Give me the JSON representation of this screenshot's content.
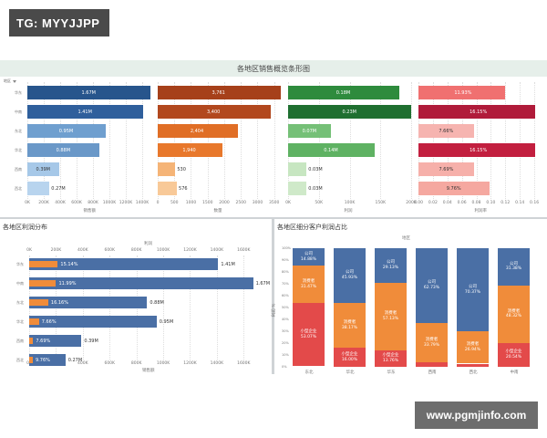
{
  "tag": {
    "text": "TG: MYYJJPP"
  },
  "watermark": {
    "text": "www.pgmjinfo.com"
  },
  "overview": {
    "title": "各地区销售概览条形图",
    "region_header": "地区",
    "regions": [
      "华东",
      "中南",
      "东北",
      "华北",
      "西南",
      "西北"
    ],
    "columns": [
      {
        "axis_title": "销售额",
        "color": "#27558c",
        "ticks": [
          "0K",
          "200K",
          "400K",
          "600K",
          "800K",
          "1000K",
          "1200K",
          "1400K"
        ],
        "max": 1500000,
        "values": [
          1670000,
          1410000,
          950000,
          880000,
          390000,
          270000
        ],
        "labels": [
          "1.67M",
          "1.41M",
          "0.95M",
          "0.88M",
          "0.39M",
          "0.27M"
        ],
        "bar_colors": [
          "#27558c",
          "#2f5f9c",
          "#6f9fcf",
          "#6a98c8",
          "#a6c8e8",
          "#b8d4ee"
        ]
      },
      {
        "axis_title": "数量",
        "color": "#c0541f",
        "ticks": [
          "0",
          "500",
          "1000",
          "1500",
          "2000",
          "2500",
          "3000",
          "3500"
        ],
        "max": 3700,
        "values": [
          3761,
          3400,
          2404,
          1940,
          530,
          576
        ],
        "labels": [
          "3,761",
          "3,400",
          "2,404",
          "1,940",
          "530",
          "576"
        ],
        "bar_colors": [
          "#a6401a",
          "#b2481e",
          "#e06e26",
          "#e8782c",
          "#f5b477",
          "#f8c998"
        ]
      },
      {
        "axis_title": "利润",
        "color": "#2d8a3a",
        "ticks": [
          "0K",
          "50K",
          "100K",
          "150K",
          "200K"
        ],
        "max": 200000,
        "values": [
          180000,
          230000,
          70000,
          140000,
          30000,
          30000
        ],
        "labels": [
          "0.18M",
          "0.23M",
          "0.07M",
          "0.14M",
          "0.03M",
          "0.03M"
        ],
        "bar_colors": [
          "#2e8b3d",
          "#1f6f30",
          "#75c077",
          "#5fb263",
          "#c7e6c1",
          "#cfe9c9"
        ]
      },
      {
        "axis_title": "利润率",
        "color": "#c8303a",
        "ticks": [
          "0.00",
          "0.02",
          "0.04",
          "0.06",
          "0.08",
          "0.10",
          "0.12",
          "0.14",
          "0.16"
        ],
        "max": 0.17,
        "values": [
          0.1193,
          0.1615,
          0.0766,
          0.1615,
          0.0769,
          0.0976
        ],
        "labels": [
          "11.93%",
          "16.15%",
          "7.66%",
          "16.15%",
          "7.69%",
          "9.76%"
        ],
        "bar_colors": [
          "#f07070",
          "#b01b3a",
          "#f6b4b0",
          "#c21f3f",
          "#f6b0aa",
          "#f5a8a0"
        ]
      }
    ]
  },
  "profit_dist": {
    "title": "各地区利润分布",
    "axis_top_title": "利润",
    "axis_bottom_title": "销售额",
    "ticks": [
      "0K",
      "200K",
      "400K",
      "600K",
      "800K",
      "1000K",
      "1200K",
      "1400K",
      "1600K"
    ],
    "max_sales": 1700000,
    "regions": [
      "华东",
      "中南",
      "东北",
      "华北",
      "西南",
      "西北"
    ],
    "sales": [
      1410000,
      1670000,
      880000,
      950000,
      390000,
      270000
    ],
    "sales_labels": [
      "1.41M",
      "1.67M",
      "0.88M",
      "0.95M",
      "0.39M",
      "0.27M"
    ],
    "profit_rates": [
      "15.14%",
      "11.99%",
      "16.16%",
      "7.66%",
      "7.69%",
      "9.76%"
    ],
    "profit_ratio": [
      0.1514,
      0.1199,
      0.1616,
      0.0766,
      0.0769,
      0.0976
    ],
    "colors": {
      "sales": "#4a6fa5",
      "profit": "#f08c3a"
    }
  },
  "segment_ratio": {
    "title": "各地区细分客户利润占比",
    "axis_top_title": "地区",
    "y_axis_title": "利润 %",
    "y_ticks": [
      "100%",
      "90%",
      "80%",
      "70%",
      "60%",
      "50%",
      "40%",
      "30%",
      "20%",
      "10%",
      "0%"
    ],
    "regions": [
      "东北",
      "华北",
      "华东",
      "西南",
      "西北",
      "中南"
    ],
    "colors": {
      "company": "#4a6fa5",
      "consumer": "#f08c3a",
      "small_biz": "#e34a4a"
    },
    "stacks": [
      {
        "company": 0.1488,
        "consumer": 0.3147,
        "small_biz": 0.5307,
        "labels": {
          "company": "公司\n14.88%",
          "consumer": "消费者\n31.47%",
          "small_biz": "小型企业\n53.07%"
        }
      },
      {
        "company": 0.4593,
        "consumer": 0.3817,
        "small_biz": 0.16,
        "labels": {
          "company": "公司\n45.93%",
          "consumer": "消费者\n38.17%",
          "small_biz": "小型企业\n16.00%"
        }
      },
      {
        "company": 0.2913,
        "consumer": 0.5713,
        "small_biz": 0.1376,
        "labels": {
          "company": "公司\n29.13%",
          "consumer": "消费者\n57.13%",
          "small_biz": "小型企业\n13.76%"
        }
      },
      {
        "company": 0.6273,
        "consumer": 0.3379,
        "small_biz": 0.0348,
        "labels": {
          "company": "公司\n62.73%",
          "consumer": "消费者\n33.79%",
          "small_biz": ""
        }
      },
      {
        "company": 0.7037,
        "consumer": 0.2694,
        "small_biz": 0.0269,
        "labels": {
          "company": "公司\n70.37%",
          "consumer": "消费者\n26.94%",
          "small_biz": ""
        }
      },
      {
        "company": 0.3138,
        "consumer": 0.4832,
        "small_biz": 0.2054,
        "labels": {
          "company": "公司\n31.38%",
          "consumer": "消费者\n48.32%",
          "small_biz": "小型企业\n20.54%"
        }
      }
    ]
  }
}
